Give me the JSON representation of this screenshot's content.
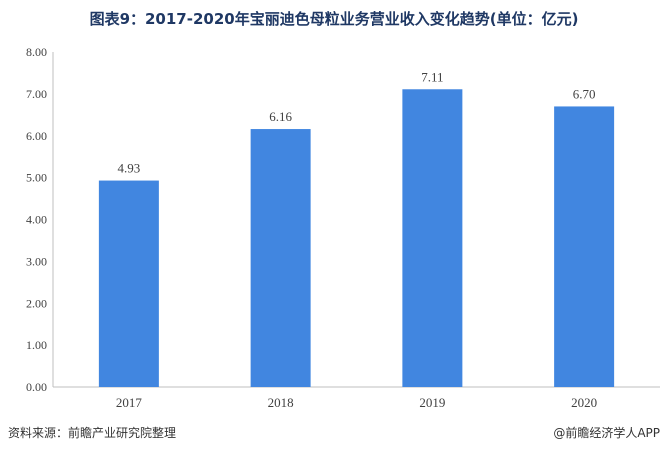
{
  "title": "图表9：2017-2020年宝丽迪色母粒业务营业收入变化趋势(单位：亿元)",
  "footer": {
    "source": "资料来源：前瞻产业研究院整理",
    "brand": "@前瞻经济学人APP"
  },
  "colors": {
    "bar": "#4186e0",
    "axis": "#bfbfbf",
    "text": "#404040"
  },
  "chart_data": {
    "type": "bar",
    "categories": [
      "2017",
      "2018",
      "2019",
      "2020"
    ],
    "values": [
      4.93,
      6.16,
      7.11,
      6.7
    ],
    "value_labels": [
      "4.93",
      "6.16",
      "7.11",
      "6.70"
    ],
    "yticks": [
      "0.00",
      "1.00",
      "2.00",
      "3.00",
      "4.00",
      "5.00",
      "6.00",
      "7.00",
      "8.00"
    ],
    "ylim": [
      0,
      8
    ],
    "grid": false,
    "legend": "none"
  }
}
